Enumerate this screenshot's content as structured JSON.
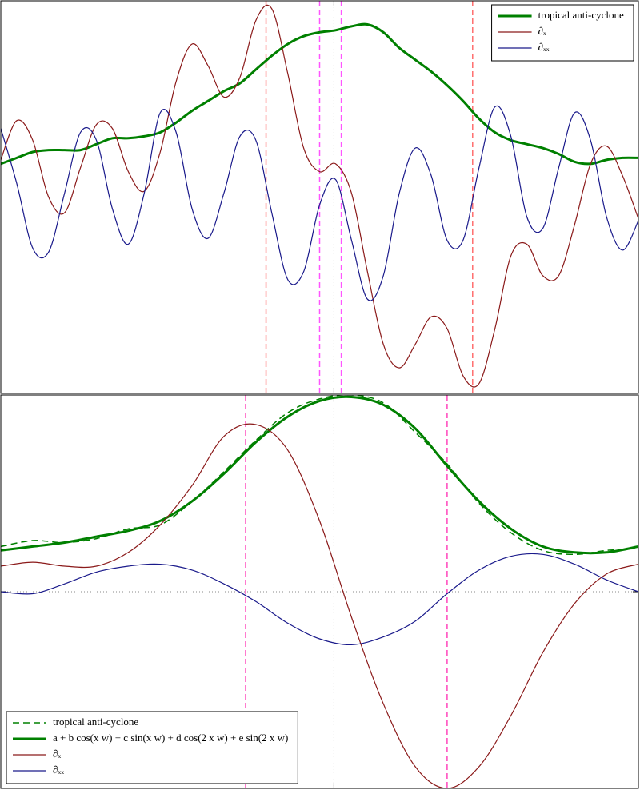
{
  "chart_data": [
    {
      "type": "line",
      "x": [
        0,
        2.5,
        5,
        7.5,
        10,
        12.5,
        15,
        17.5,
        20,
        22.5,
        25,
        27.5,
        30,
        32.5,
        35,
        37.5,
        40,
        42.5,
        45,
        47.5,
        50,
        52.5,
        55,
        57.5,
        60,
        62.5,
        65,
        67.5,
        70,
        72.5,
        75,
        77.5,
        80,
        82.5,
        85,
        87.5,
        90,
        92.5,
        95,
        97.5,
        100
      ],
      "xlim": [
        0,
        100
      ],
      "ylim": [
        -1,
        1
      ],
      "xticks": [
        52.25
      ],
      "yticks": [
        0
      ],
      "grid": true,
      "legend": "upper right",
      "series": [
        {
          "name": "tropical anti-cyclone",
          "color": "#008000",
          "linewidth": 3,
          "values": [
            0.17,
            0.2,
            0.23,
            0.24,
            0.24,
            0.24,
            0.27,
            0.3,
            0.3,
            0.31,
            0.33,
            0.38,
            0.44,
            0.49,
            0.54,
            0.58,
            0.65,
            0.72,
            0.78,
            0.82,
            0.84,
            0.85,
            0.87,
            0.88,
            0.84,
            0.76,
            0.7,
            0.64,
            0.57,
            0.49,
            0.4,
            0.33,
            0.29,
            0.27,
            0.25,
            0.22,
            0.18,
            0.17,
            0.19,
            0.2,
            0.2
          ]
        },
        {
          "name": "∂ₓ",
          "color": "#8b1a1a",
          "linewidth": 1.2,
          "values": [
            0.19,
            0.39,
            0.29,
            0.0,
            -0.08,
            0.15,
            0.37,
            0.35,
            0.13,
            0.03,
            0.23,
            0.59,
            0.78,
            0.67,
            0.51,
            0.61,
            0.9,
            0.96,
            0.63,
            0.25,
            0.13,
            0.17,
            0.02,
            -0.38,
            -0.75,
            -0.87,
            -0.75,
            -0.61,
            -0.67,
            -0.91,
            -0.95,
            -0.67,
            -0.3,
            -0.24,
            -0.4,
            -0.4,
            -0.14,
            0.17,
            0.26,
            0.11,
            -0.11
          ]
        },
        {
          "name": "∂ₓₓ",
          "color": "#1a1a8b",
          "linewidth": 1.2,
          "values": [
            0.35,
            0.07,
            -0.26,
            -0.28,
            0.02,
            0.33,
            0.29,
            -0.06,
            -0.24,
            0.02,
            0.43,
            0.33,
            -0.06,
            -0.21,
            0.02,
            0.31,
            0.29,
            -0.08,
            -0.42,
            -0.38,
            -0.04,
            0.09,
            -0.22,
            -0.52,
            -0.4,
            0.02,
            0.25,
            0.11,
            -0.22,
            -0.22,
            0.15,
            0.46,
            0.31,
            -0.1,
            -0.16,
            0.15,
            0.43,
            0.29,
            -0.1,
            -0.27,
            -0.12
          ]
        }
      ],
      "vlines": [
        {
          "x": 41.6,
          "color": "#ff6f6f"
        },
        {
          "x": 50,
          "color": "#ff55ff"
        },
        {
          "x": 53.4,
          "color": "#ff55ff"
        },
        {
          "x": 74,
          "color": "#ff6f6f"
        }
      ]
    },
    {
      "type": "line",
      "x": [
        0,
        5,
        10,
        15,
        20,
        25,
        30,
        35,
        40,
        45,
        50,
        55,
        60,
        65,
        70,
        75,
        80,
        85,
        90,
        95,
        100
      ],
      "xlim": [
        0,
        100
      ],
      "ylim": [
        -1,
        1
      ],
      "xticks": [
        52.25
      ],
      "yticks": [
        0
      ],
      "grid": true,
      "legend": "lower left",
      "series": [
        {
          "name": "tropical anti-cyclone",
          "color": "#008000",
          "linewidth": 1.5,
          "dashed": true,
          "values": [
            0.23,
            0.26,
            0.25,
            0.27,
            0.32,
            0.34,
            0.46,
            0.61,
            0.77,
            0.91,
            0.98,
            1.0,
            0.96,
            0.81,
            0.65,
            0.45,
            0.3,
            0.21,
            0.19,
            0.21,
            0.22
          ]
        },
        {
          "name": "a + b  cos(x w) + c  sin(x w) + d  cos(2 x w) + e  sin(2 x w)",
          "color": "#008000",
          "linewidth": 3,
          "values": [
            0.21,
            0.23,
            0.25,
            0.28,
            0.31,
            0.36,
            0.46,
            0.6,
            0.76,
            0.89,
            0.97,
            0.99,
            0.95,
            0.83,
            0.64,
            0.46,
            0.32,
            0.23,
            0.2,
            0.2,
            0.23
          ]
        },
        {
          "name": "∂ₓ",
          "color": "#8b1a1a",
          "linewidth": 1.2,
          "values": [
            0.13,
            0.15,
            0.13,
            0.13,
            0.2,
            0.34,
            0.54,
            0.79,
            0.85,
            0.72,
            0.36,
            -0.13,
            -0.57,
            -0.89,
            -1.0,
            -0.89,
            -0.63,
            -0.31,
            -0.06,
            0.09,
            0.14
          ]
        },
        {
          "name": "∂ₓₓ",
          "color": "#1a1a8b",
          "linewidth": 1.2,
          "values": [
            0.0,
            -0.01,
            0.04,
            0.1,
            0.13,
            0.14,
            0.11,
            0.04,
            -0.05,
            -0.16,
            -0.24,
            -0.27,
            -0.23,
            -0.15,
            -0.01,
            0.11,
            0.18,
            0.19,
            0.14,
            0.06,
            0.0
          ]
        }
      ],
      "vlines": [
        {
          "x": 38.4,
          "color": "#ff44bb"
        },
        {
          "x": 70,
          "color": "#ff44bb"
        }
      ]
    }
  ]
}
